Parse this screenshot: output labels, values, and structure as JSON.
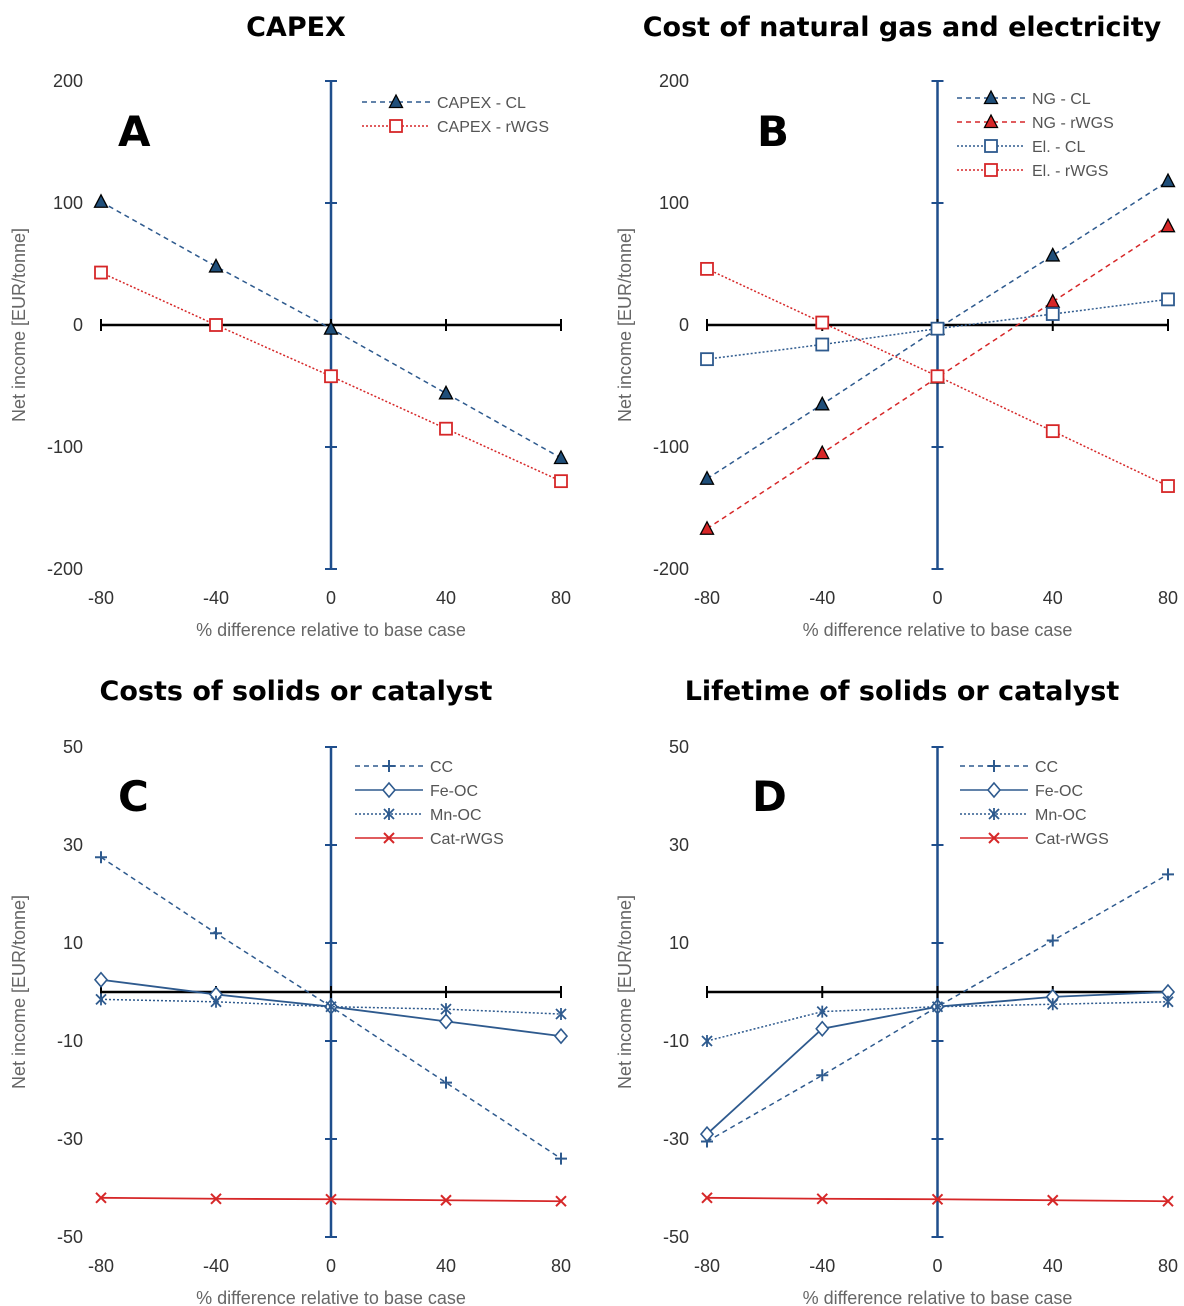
{
  "chart_data": [
    {
      "type": "line",
      "title": "CAPEX",
      "panel_letter": "A",
      "xlabel": "% difference relative to base case",
      "ylabel": "Net income [EUR/tonne]",
      "x": [
        -80,
        -40,
        0,
        40,
        80
      ],
      "xticks": [
        "-80",
        "-40",
        "0",
        "40",
        "80"
      ],
      "ylim": [
        -200,
        200
      ],
      "yticks": [
        -200,
        -100,
        0,
        100,
        200
      ],
      "ytick_labels": [
        "-200",
        "-100",
        "0",
        "100",
        "200"
      ],
      "legend_position": "top-right",
      "series": [
        {
          "name": "CAPEX - CL",
          "color": "#2e5a8e",
          "marker": "triangle",
          "fill": "#1f4e79",
          "dash": "dashed",
          "values": [
            101,
            48,
            -3,
            -56,
            -109
          ]
        },
        {
          "name": "CAPEX - rWGS",
          "color": "#d62728",
          "marker": "square",
          "fill": "none",
          "dash": "dotted",
          "values": [
            43,
            0,
            -42,
            -85,
            -128
          ]
        }
      ]
    },
    {
      "type": "line",
      "title": "Cost of natural gas and electricity",
      "panel_letter": "B",
      "xlabel": "% difference relative to base case",
      "ylabel": "Net income [EUR/tonne]",
      "x": [
        -80,
        -40,
        0,
        40,
        80
      ],
      "xticks": [
        "-80",
        "-40",
        "0",
        "40",
        "80"
      ],
      "ylim": [
        -200,
        200
      ],
      "yticks": [
        -200,
        -100,
        0,
        100,
        200
      ],
      "ytick_labels": [
        "-200",
        "-100",
        "0",
        "100",
        "200"
      ],
      "legend_position": "top-right",
      "series": [
        {
          "name": "NG - CL",
          "color": "#2e5a8e",
          "marker": "triangle",
          "fill": "#1f4e79",
          "dash": "dashed",
          "values": [
            -126,
            -65,
            -3,
            57,
            118
          ]
        },
        {
          "name": "NG - rWGS",
          "color": "#d62728",
          "marker": "triangle",
          "fill": "#d62728",
          "dash": "dashed",
          "values": [
            -167,
            -105,
            -43,
            19,
            81
          ]
        },
        {
          "name": "El. - CL",
          "color": "#2e5a8e",
          "marker": "square",
          "fill": "none",
          "dash": "dotted",
          "values": [
            -28,
            -16,
            -3,
            9,
            21
          ]
        },
        {
          "name": "El. - rWGS",
          "color": "#d62728",
          "marker": "square",
          "fill": "none",
          "dash": "dotted",
          "values": [
            46,
            2,
            -42,
            -87,
            -132
          ]
        }
      ]
    },
    {
      "type": "line",
      "title": "Costs of solids or catalyst",
      "panel_letter": "C",
      "xlabel": "% difference relative to base case",
      "ylabel": "Net income [EUR/tonne]",
      "x": [
        -80,
        -40,
        0,
        40,
        80
      ],
      "xticks": [
        "-80",
        "-40",
        "0",
        "40",
        "80"
      ],
      "ylim": [
        -50,
        50
      ],
      "yticks": [
        -50,
        -30,
        -10,
        10,
        30,
        50
      ],
      "ytick_labels": [
        "-50",
        "-30",
        "-10",
        "10",
        "30",
        "50"
      ],
      "legend_position": "top-right",
      "series": [
        {
          "name": "CC",
          "color": "#2e5a8e",
          "marker": "plus",
          "dash": "dashed",
          "values": [
            27.5,
            12.0,
            -3.0,
            -18.5,
            -34.0
          ]
        },
        {
          "name": "Fe-OC",
          "color": "#2e5a8e",
          "marker": "diamond",
          "dash": "solid",
          "values": [
            2.5,
            -0.5,
            -3.0,
            -6.0,
            -9.0
          ]
        },
        {
          "name": "Mn-OC",
          "color": "#2e5a8e",
          "marker": "asterisk",
          "dash": "dotted",
          "values": [
            -1.5,
            -2.0,
            -3.0,
            -3.5,
            -4.5
          ]
        },
        {
          "name": "Cat-rWGS",
          "color": "#d62728",
          "marker": "x",
          "dash": "solid",
          "values": [
            -42.0,
            -42.2,
            -42.3,
            -42.5,
            -42.7
          ]
        }
      ]
    },
    {
      "type": "line",
      "title": "Lifetime of solids or catalyst",
      "panel_letter": "D",
      "xlabel": "% difference relative to base case",
      "ylabel": "Net income [EUR/tonne]",
      "x": [
        -80,
        -40,
        0,
        40,
        80
      ],
      "xticks": [
        "-80",
        "-40",
        "0",
        "40",
        "80"
      ],
      "ylim": [
        -50,
        50
      ],
      "yticks": [
        -50,
        -30,
        -10,
        10,
        30,
        50
      ],
      "ytick_labels": [
        "-50",
        "-30",
        "-10",
        "10",
        "30",
        "50"
      ],
      "legend_position": "top-right",
      "series": [
        {
          "name": "CC",
          "color": "#2e5a8e",
          "marker": "plus",
          "dash": "dashed",
          "values": [
            -30.5,
            -17.0,
            -3.0,
            10.5,
            24.0
          ]
        },
        {
          "name": "Fe-OC",
          "color": "#2e5a8e",
          "marker": "diamond",
          "dash": "solid",
          "values": [
            -29.0,
            -7.5,
            -3.0,
            -1.0,
            0.0
          ]
        },
        {
          "name": "Mn-OC",
          "color": "#2e5a8e",
          "marker": "asterisk",
          "dash": "dotted",
          "values": [
            -10.0,
            -4.0,
            -3.0,
            -2.5,
            -2.0
          ]
        },
        {
          "name": "Cat-rWGS",
          "color": "#d62728",
          "marker": "x",
          "dash": "solid",
          "values": [
            -42.0,
            -42.2,
            -42.3,
            -42.5,
            -42.7
          ]
        }
      ]
    }
  ]
}
